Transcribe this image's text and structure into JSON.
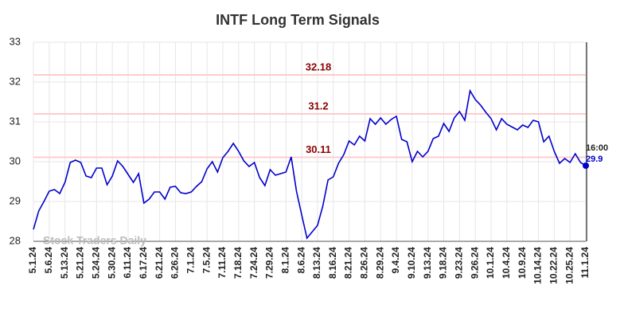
{
  "chart_data": {
    "type": "line",
    "title": "INTF Long Term Signals",
    "watermark": "Stock Traders Daily",
    "categories": [
      "5.1.24",
      null,
      null,
      "5.6.24",
      null,
      null,
      "5.13.24",
      null,
      null,
      "5.21.24",
      null,
      null,
      "5.24.24",
      null,
      null,
      "5.30.24",
      null,
      null,
      "6.11.24",
      null,
      null,
      "6.17.24",
      null,
      null,
      "6.21.24",
      null,
      null,
      "6.26.24",
      null,
      null,
      "7.1.24",
      null,
      null,
      "7.5.24",
      null,
      null,
      "7.11.24",
      null,
      null,
      "7.18.24",
      null,
      null,
      "7.24.24",
      null,
      null,
      "7.29.24",
      null,
      null,
      "8.1.24",
      null,
      null,
      "8.6.24",
      null,
      null,
      "8.13.24",
      null,
      null,
      "8.16.24",
      null,
      null,
      "8.21.24",
      null,
      null,
      "8.26.24",
      null,
      null,
      "8.29.24",
      null,
      null,
      "9.4.24",
      null,
      null,
      "9.10.24",
      null,
      null,
      "9.13.24",
      null,
      null,
      "9.18.24",
      null,
      null,
      "9.23.24",
      null,
      null,
      "9.26.24",
      null,
      null,
      "10.1.24",
      null,
      null,
      "10.4.24",
      null,
      null,
      "10.9.24",
      null,
      null,
      "10.14.24",
      null,
      null,
      "10.22.24",
      null,
      null,
      "10.25.24",
      null,
      null,
      "11.1.24"
    ],
    "values": [
      28.3,
      28.76,
      29.0,
      29.26,
      29.3,
      29.2,
      29.48,
      29.98,
      30.04,
      29.98,
      29.64,
      29.6,
      29.84,
      29.84,
      29.42,
      29.64,
      30.02,
      29.88,
      29.68,
      29.48,
      29.7,
      28.96,
      29.06,
      29.24,
      29.24,
      29.06,
      29.36,
      29.38,
      29.22,
      29.2,
      29.24,
      29.38,
      29.5,
      29.82,
      30.0,
      29.74,
      30.1,
      30.26,
      30.46,
      30.26,
      30.02,
      29.88,
      29.98,
      29.6,
      29.4,
      29.8,
      29.66,
      29.7,
      29.74,
      30.12,
      29.26,
      28.66,
      28.08,
      28.24,
      28.4,
      28.88,
      29.54,
      29.62,
      29.96,
      30.18,
      30.52,
      30.42,
      30.64,
      30.52,
      31.08,
      30.94,
      31.1,
      30.94,
      31.06,
      31.14,
      30.56,
      30.5,
      30.0,
      30.26,
      30.12,
      30.26,
      30.58,
      30.64,
      30.96,
      30.76,
      31.1,
      31.26,
      31.04,
      31.78,
      31.56,
      31.42,
      31.24,
      31.08,
      30.8,
      31.08,
      30.94,
      30.87,
      30.8,
      30.92,
      30.86,
      31.04,
      31.0,
      30.5,
      30.64,
      30.26,
      29.96,
      30.08,
      29.98,
      30.2,
      29.98,
      29.9
    ],
    "color": "#0000cc",
    "levels": [
      32.18,
      31.2,
      30.11
    ],
    "level_color": "#ffcccc",
    "level_label_color": "#8b0000",
    "last_time": "16:00",
    "ylim": [
      28,
      33
    ],
    "yticks": [
      28,
      29,
      30,
      31,
      32,
      33
    ],
    "grid": true
  }
}
